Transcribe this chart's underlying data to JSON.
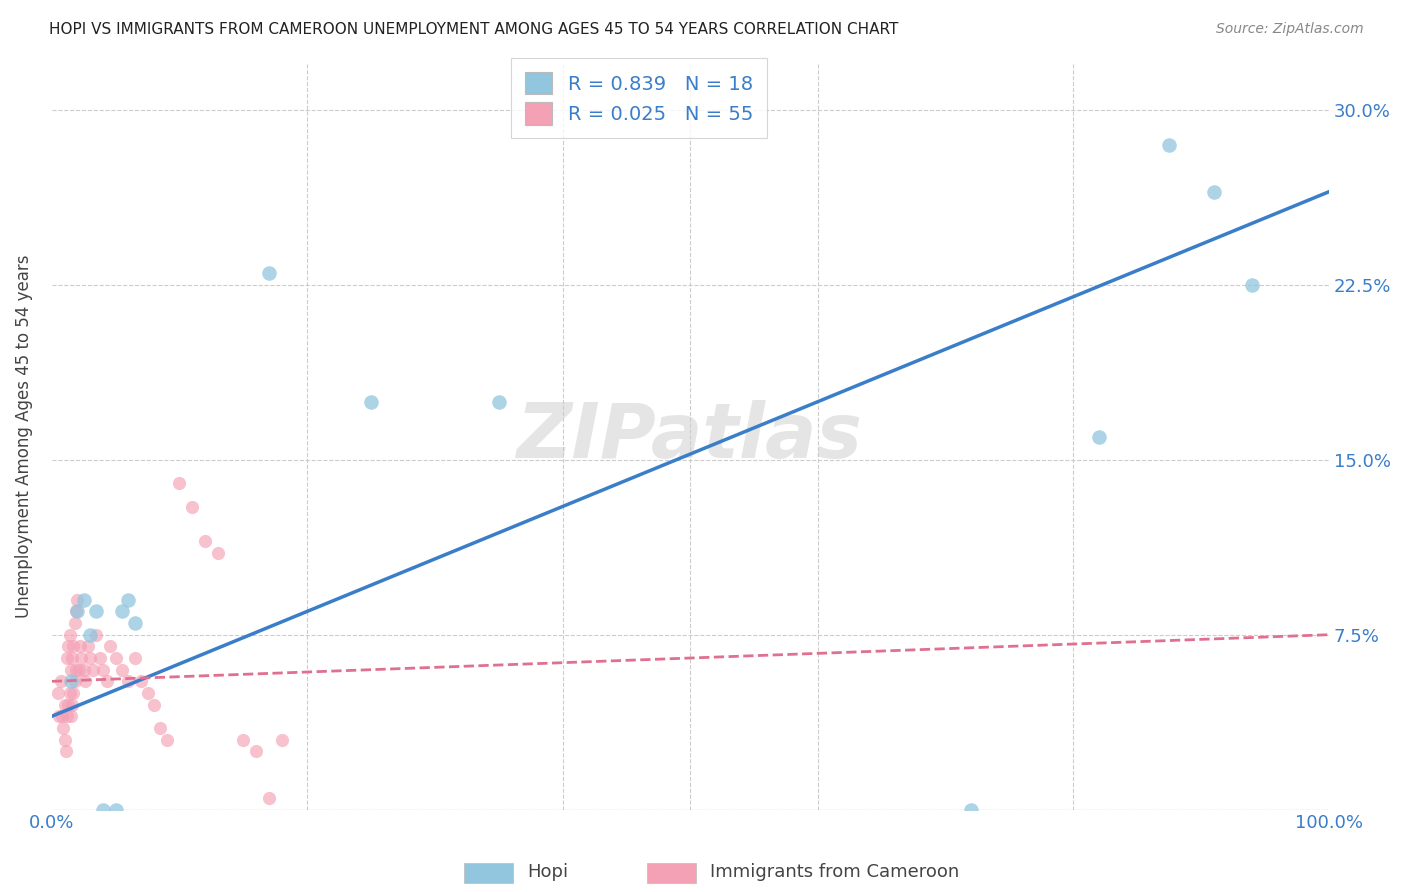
{
  "title": "HOPI VS IMMIGRANTS FROM CAMEROON UNEMPLOYMENT AMONG AGES 45 TO 54 YEARS CORRELATION CHART",
  "source": "Source: ZipAtlas.com",
  "ylabel": "Unemployment Among Ages 45 to 54 years",
  "hopi_R": 0.839,
  "hopi_N": 18,
  "cameroon_R": 0.025,
  "cameroon_N": 55,
  "hopi_color": "#92c5de",
  "cameroon_color": "#f4a0b5",
  "hopi_line_color": "#3a7dc9",
  "cameroon_line_color": "#e07090",
  "xlim": [
    0.0,
    1.0
  ],
  "ylim": [
    0.0,
    0.32
  ],
  "ytick_values": [
    0.0,
    0.075,
    0.15,
    0.225,
    0.3
  ],
  "ytick_labels": [
    "",
    "7.5%",
    "15.0%",
    "22.5%",
    "30.0%"
  ],
  "watermark": "ZIPatlas",
  "hopi_x": [
    0.015,
    0.02,
    0.025,
    0.03,
    0.035,
    0.04,
    0.05,
    0.055,
    0.06,
    0.065,
    0.17,
    0.25,
    0.35,
    0.72,
    0.82,
    0.875,
    0.91,
    0.94
  ],
  "hopi_y": [
    0.055,
    0.085,
    0.09,
    0.075,
    0.085,
    0.0,
    0.0,
    0.085,
    0.09,
    0.08,
    0.23,
    0.175,
    0.175,
    0.0,
    0.16,
    0.285,
    0.265,
    0.225
  ],
  "cameroon_x": [
    0.005,
    0.006,
    0.007,
    0.008,
    0.009,
    0.01,
    0.01,
    0.011,
    0.012,
    0.012,
    0.013,
    0.013,
    0.014,
    0.014,
    0.015,
    0.015,
    0.016,
    0.016,
    0.017,
    0.017,
    0.018,
    0.018,
    0.019,
    0.019,
    0.02,
    0.021,
    0.022,
    0.023,
    0.025,
    0.026,
    0.028,
    0.03,
    0.032,
    0.035,
    0.038,
    0.04,
    0.043,
    0.046,
    0.05,
    0.055,
    0.06,
    0.065,
    0.07,
    0.075,
    0.08,
    0.085,
    0.09,
    0.1,
    0.11,
    0.12,
    0.13,
    0.15,
    0.16,
    0.17,
    0.18
  ],
  "cameroon_y": [
    0.05,
    0.04,
    0.055,
    0.04,
    0.035,
    0.03,
    0.045,
    0.025,
    0.04,
    0.065,
    0.07,
    0.045,
    0.075,
    0.05,
    0.06,
    0.04,
    0.065,
    0.045,
    0.07,
    0.05,
    0.08,
    0.055,
    0.085,
    0.06,
    0.09,
    0.06,
    0.07,
    0.065,
    0.06,
    0.055,
    0.07,
    0.065,
    0.06,
    0.075,
    0.065,
    0.06,
    0.055,
    0.07,
    0.065,
    0.06,
    0.055,
    0.065,
    0.055,
    0.05,
    0.045,
    0.035,
    0.03,
    0.14,
    0.13,
    0.115,
    0.11,
    0.03,
    0.025,
    0.005,
    0.03
  ],
  "hopi_line_x": [
    0.0,
    1.0
  ],
  "hopi_line_y": [
    0.04,
    0.265
  ],
  "cameroon_line_x": [
    0.0,
    1.0
  ],
  "cameroon_line_y": [
    0.055,
    0.075
  ]
}
